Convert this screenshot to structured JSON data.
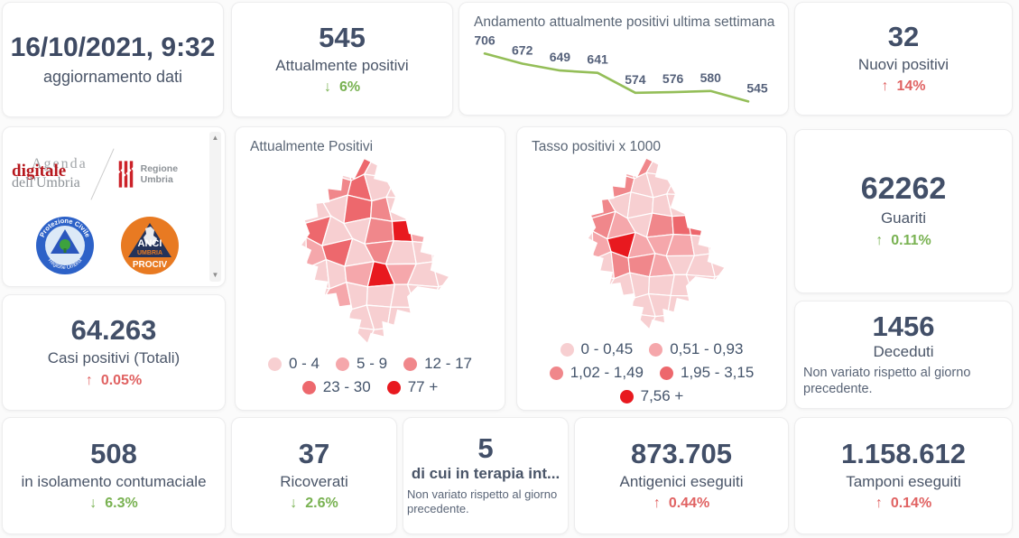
{
  "colors": {
    "positive_green": "#79b252",
    "negative_red": "#e06262",
    "number_navy": "#424f68",
    "trend_line_green": "#94be58"
  },
  "update_card": {
    "datetime": "16/10/2021, 9:32",
    "caption": "aggiornamento dati"
  },
  "stats": {
    "attualmente_positivi": {
      "value": "545",
      "label": "Attualmente positivi",
      "arrow": "↓",
      "delta": "6%",
      "delta_color": "green"
    },
    "nuovi_positivi": {
      "value": "32",
      "label": "Nuovi positivi",
      "arrow": "↑",
      "delta": "14%",
      "delta_color": "red"
    },
    "guariti": {
      "value": "62262",
      "label": "Guariti",
      "arrow": "↑",
      "delta": "0.11%",
      "delta_color": "green"
    },
    "casi_totali": {
      "value": "64.263",
      "label": "Casi positivi (Totali)",
      "arrow": "↑",
      "delta": "0.05%",
      "delta_color": "red"
    },
    "deceduti": {
      "value": "1456",
      "label": "Deceduti",
      "note": "Non variato rispetto al giorno precedente."
    },
    "isolamento": {
      "value": "508",
      "label": "in isolamento contumaciale",
      "arrow": "↓",
      "delta": "6.3%",
      "delta_color": "green"
    },
    "ricoverati": {
      "value": "37",
      "label": "Ricoverati",
      "arrow": "↓",
      "delta": "2.6%",
      "delta_color": "green"
    },
    "terapia_intensiva": {
      "value": "5",
      "label": "di cui in terapia int...",
      "note": "Non variato rispetto al giorno precedente."
    },
    "antigenici": {
      "value": "873.705",
      "label": "Antigenici eseguiti",
      "arrow": "↑",
      "delta": "0.44%",
      "delta_color": "red"
    },
    "tamponi": {
      "value": "1.158.612",
      "label": "Tamponi eseguiti",
      "arrow": "↑",
      "delta": "0.14%",
      "delta_color": "red"
    }
  },
  "chart_data": [
    {
      "type": "line",
      "title": "Andamento attualmente positivi ultima settimana",
      "values": [
        706,
        672,
        649,
        641,
        574,
        576,
        580,
        545
      ],
      "data_labels": true,
      "line_color": "#94be58",
      "ylim": [
        540,
        710
      ],
      "grid": false,
      "legend_position": "none"
    },
    {
      "type": "heatmap",
      "subtype": "choropleth",
      "title": "Attualmente Positivi",
      "legend": [
        {
          "label": "0 - 4",
          "color": "#f7cfd1"
        },
        {
          "label": "5 - 9",
          "color": "#f5a7ab"
        },
        {
          "label": "12 - 17",
          "color": "#f0878b"
        },
        {
          "label": "23 - 30",
          "color": "#ed686d"
        },
        {
          "label": "77 +",
          "color": "#e8191f"
        }
      ]
    },
    {
      "type": "heatmap",
      "subtype": "choropleth",
      "title": "Tasso positivi x 1000",
      "legend": [
        {
          "label": "0 - 0,45",
          "color": "#f7cfd1"
        },
        {
          "label": "0,51 - 0,93",
          "color": "#f5a7ab"
        },
        {
          "label": "1,02 - 1,49",
          "color": "#f0878b"
        },
        {
          "label": "1,95 - 3,15",
          "color": "#ed686d"
        },
        {
          "label": "7,56 +",
          "color": "#e8191f"
        }
      ]
    }
  ],
  "logos": {
    "agenda": {
      "line1": "Agenda",
      "line2": "digitale",
      "line3": "dell'Umbria"
    },
    "regione": {
      "label": "Regione Umbria"
    },
    "protezione": {
      "top": "Protezione Civile",
      "bottom": "Regione Umbria"
    },
    "anci": {
      "line1": "ANCI",
      "line2": "UMBRIA",
      "line3": "PROCIV"
    }
  },
  "scrollbar": {
    "up": "▲",
    "down": "▼"
  }
}
